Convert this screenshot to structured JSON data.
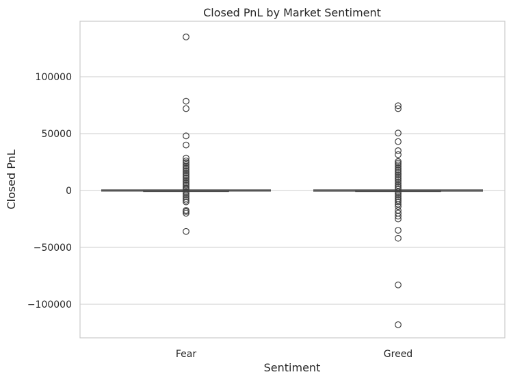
{
  "chart_data": {
    "type": "box",
    "title": "Closed PnL by Market Sentiment",
    "xlabel": "Sentiment",
    "ylabel": "Closed PnL",
    "categories": [
      "Fear",
      "Greed"
    ],
    "ylim": [
      -130000,
      146000
    ],
    "yticks": [
      100000,
      50000,
      0,
      -50000,
      -100000
    ],
    "ytick_labels": [
      "100000",
      "50000",
      "0",
      "−50000",
      "−100000"
    ],
    "grid": true,
    "colors": {
      "box_line": "#4d4d4d",
      "grid": "#cccccc",
      "spine": "#cccccc",
      "outlier_edge": "#3f3f3f"
    },
    "boxes": [
      {
        "category": "Fear",
        "whisker_low": -450,
        "q1": 0,
        "median": 0,
        "q3": 70,
        "whisker_high": 500,
        "outliers": [
          135000,
          78500,
          72000,
          48000,
          40000,
          28500,
          26000,
          24500,
          23000,
          21500,
          20000,
          18500,
          17000,
          15500,
          14000,
          12500,
          11000,
          9500,
          8000,
          6500,
          5000,
          3500,
          2000,
          1000,
          -1000,
          -2500,
          -4000,
          -5500,
          -7000,
          -8500,
          -10000,
          -17500,
          -18500,
          -20000,
          -36000
        ]
      },
      {
        "category": "Greed",
        "whisker_low": -500,
        "q1": 0,
        "median": 0,
        "q3": 60,
        "whisker_high": 500,
        "outliers": [
          74500,
          72000,
          50500,
          43000,
          35000,
          31500,
          25500,
          24000,
          22500,
          21000,
          19500,
          18000,
          16500,
          15000,
          13500,
          12000,
          10500,
          9000,
          7500,
          6000,
          4500,
          3000,
          1500,
          -1000,
          -2500,
          -4000,
          -5500,
          -7000,
          -8500,
          -10000,
          -12000,
          -14000,
          -17500,
          -20000,
          -22500,
          -25000,
          -35000,
          -42000,
          -83000,
          -118000
        ]
      }
    ]
  }
}
